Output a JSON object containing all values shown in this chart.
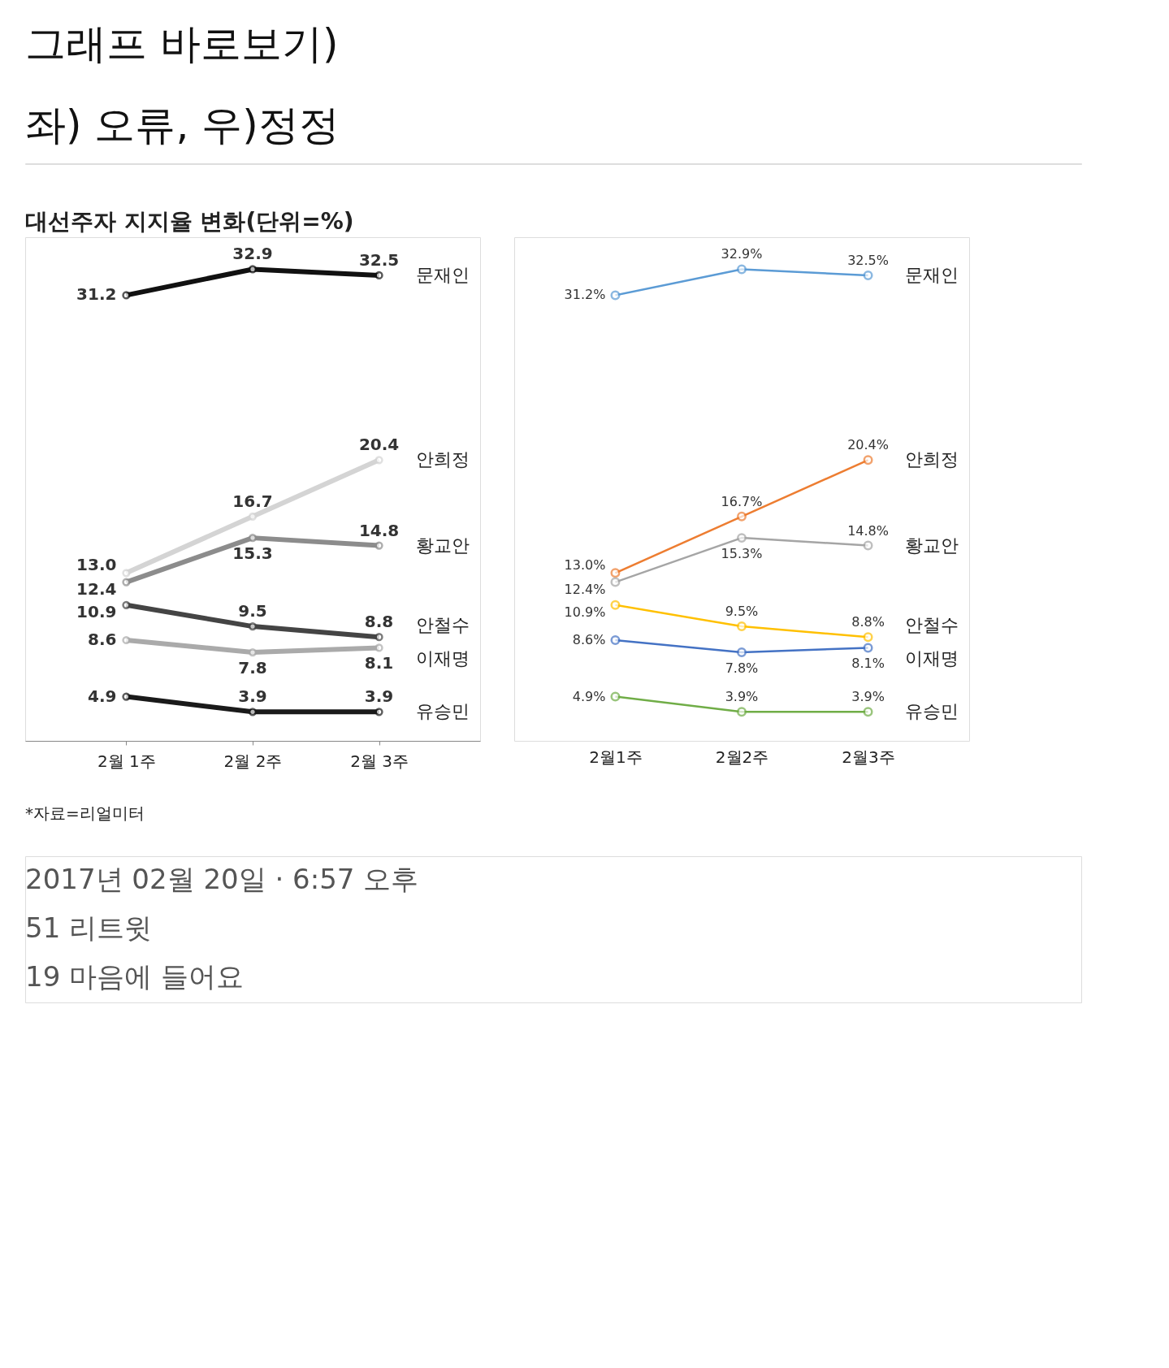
{
  "chart_data": [
    {
      "type": "other",
      "title": "그래프 바로보기)",
      "subtitle": "좌) 오류,    우)정정"
    },
    {
      "type": "line",
      "title": "대선주자 지지율 변화(단위=%)",
      "categories": [
        "2월 1주",
        "2월 2주",
        "2월 3주"
      ],
      "ylim": [
        2,
        35
      ],
      "tick_labels": "x",
      "marker": "circle",
      "line_style": "solid",
      "annotations": [
        "*자료=리얼미터"
      ],
      "series": [
        {
          "name": "문재인",
          "color": "#111111",
          "values": [
            31.2,
            32.9,
            32.5
          ],
          "value_labels": [
            "31.2",
            "32.9",
            "32.5"
          ]
        },
        {
          "name": "안희정",
          "color": "#d4d4d4",
          "values": [
            13.0,
            16.7,
            20.4
          ],
          "value_labels": [
            "13.0",
            "16.7",
            "20.4"
          ]
        },
        {
          "name": "황교안",
          "color": "#8c8c8c",
          "values": [
            12.4,
            15.3,
            14.8
          ],
          "value_labels": [
            "12.4",
            "15.3",
            "14.8"
          ]
        },
        {
          "name": "안철수",
          "color": "#444444",
          "values": [
            10.9,
            9.5,
            8.8
          ],
          "value_labels": [
            "10.9",
            "9.5",
            "8.8"
          ]
        },
        {
          "name": "이재명",
          "color": "#aaaaaa",
          "values": [
            8.6,
            7.8,
            8.1
          ],
          "value_labels": [
            "8.6",
            "7.8",
            "8.1"
          ]
        },
        {
          "name": "유승민",
          "color": "#1a1a1a",
          "values": [
            4.9,
            3.9,
            3.9
          ],
          "value_labels": [
            "4.9",
            "3.9",
            "3.9"
          ]
        }
      ]
    },
    {
      "type": "line",
      "categories": [
        "2월1주",
        "2월2주",
        "2월3주"
      ],
      "ylim": [
        2,
        35
      ],
      "tick_labels": "x",
      "marker": "circle",
      "line_style": "solid",
      "series": [
        {
          "name": "문재인",
          "color": "#5b9bd5",
          "values": [
            31.2,
            32.9,
            32.5
          ],
          "value_labels": [
            "31.2%",
            "32.9%",
            "32.5%"
          ]
        },
        {
          "name": "안희정",
          "color": "#ed7d31",
          "values": [
            13.0,
            16.7,
            20.4
          ],
          "value_labels": [
            "13.0%",
            "16.7%",
            "20.4%"
          ]
        },
        {
          "name": "황교안",
          "color": "#a5a5a5",
          "values": [
            12.4,
            15.3,
            14.8
          ],
          "value_labels": [
            "12.4%",
            "15.3%",
            "14.8%"
          ]
        },
        {
          "name": "안철수",
          "color": "#ffc000",
          "values": [
            10.9,
            9.5,
            8.8
          ],
          "value_labels": [
            "10.9%",
            "9.5%",
            "8.8%"
          ]
        },
        {
          "name": "이재명",
          "color": "#4472c4",
          "values": [
            8.6,
            7.8,
            8.1
          ],
          "value_labels": [
            "8.6%",
            "7.8%",
            "8.1%"
          ]
        },
        {
          "name": "유승민",
          "color": "#70ad47",
          "values": [
            4.9,
            3.9,
            3.9
          ],
          "value_labels": [
            "4.9%",
            "3.9%",
            "3.9%"
          ]
        }
      ]
    },
    {
      "type": "other",
      "annotations": [
        "2017년 02월 20일 · 6:57 오후",
        "51 리트윗",
        "19 마음에 들어요"
      ]
    }
  ]
}
